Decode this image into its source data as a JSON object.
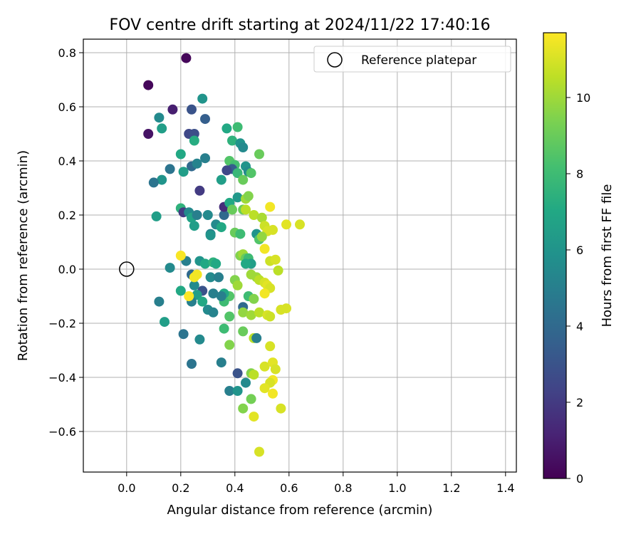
{
  "chart_data": {
    "type": "scatter",
    "title": "FOV centre drift starting at 2024/11/22 17:40:16",
    "xlabel": "Angular distance from reference (arcmin)",
    "ylabel": "Rotation from reference (arcmin)",
    "xlim": [
      -0.16,
      1.44
    ],
    "ylim": [
      -0.75,
      0.85
    ],
    "xticks": [
      0.0,
      0.2,
      0.4,
      0.6,
      0.8,
      1.0,
      1.2,
      1.4
    ],
    "xtick_labels": [
      "0.0",
      "0.2",
      "0.4",
      "0.6",
      "0.8",
      "1.0",
      "1.2",
      "1.4"
    ],
    "yticks": [
      -0.6,
      -0.4,
      -0.2,
      0.0,
      0.2,
      0.4,
      0.6,
      0.8
    ],
    "ytick_labels": [
      "−0.6",
      "−0.4",
      "−0.2",
      "0.0",
      "0.2",
      "0.4",
      "0.6",
      "0.8"
    ],
    "grid": true,
    "legend": {
      "placement": "top-right",
      "entries": [
        "Reference platepar"
      ]
    },
    "reference_point": {
      "x": 0.0,
      "y": 0.0,
      "label": "Reference platepar"
    },
    "colorbar": {
      "label": "Hours from first FF file",
      "range": [
        0,
        11.7
      ],
      "ticks": [
        0,
        2,
        4,
        6,
        8,
        10
      ],
      "tick_labels": [
        "0",
        "2",
        "4",
        "6",
        "8",
        "10"
      ],
      "colormap": "viridis"
    },
    "points": [
      {
        "x": 0.22,
        "y": 0.78,
        "h": 0.2
      },
      {
        "x": 0.08,
        "y": 0.68,
        "h": 0.2
      },
      {
        "x": 0.08,
        "y": 0.5,
        "h": 0.6
      },
      {
        "x": 0.17,
        "y": 0.59,
        "h": 1.0
      },
      {
        "x": 0.12,
        "y": 0.56,
        "h": 5.5
      },
      {
        "x": 0.13,
        "y": 0.52,
        "h": 6.5
      },
      {
        "x": 0.24,
        "y": 0.59,
        "h": 3.0
      },
      {
        "x": 0.28,
        "y": 0.63,
        "h": 6.0
      },
      {
        "x": 0.29,
        "y": 0.555,
        "h": 3.5
      },
      {
        "x": 0.23,
        "y": 0.5,
        "h": 2.5
      },
      {
        "x": 0.25,
        "y": 0.5,
        "h": 2.8
      },
      {
        "x": 0.25,
        "y": 0.475,
        "h": 7.2
      },
      {
        "x": 0.2,
        "y": 0.425,
        "h": 7.0
      },
      {
        "x": 0.29,
        "y": 0.41,
        "h": 5.0
      },
      {
        "x": 0.24,
        "y": 0.38,
        "h": 4.0
      },
      {
        "x": 0.26,
        "y": 0.39,
        "h": 5.2
      },
      {
        "x": 0.16,
        "y": 0.37,
        "h": 4.5
      },
      {
        "x": 0.21,
        "y": 0.36,
        "h": 6.5
      },
      {
        "x": 0.13,
        "y": 0.33,
        "h": 6.0
      },
      {
        "x": 0.1,
        "y": 0.32,
        "h": 4.5
      },
      {
        "x": 0.27,
        "y": 0.29,
        "h": 2.0
      },
      {
        "x": 0.2,
        "y": 0.225,
        "h": 7.5
      },
      {
        "x": 0.21,
        "y": 0.21,
        "h": 2.0
      },
      {
        "x": 0.23,
        "y": 0.21,
        "h": 5.5
      },
      {
        "x": 0.11,
        "y": 0.195,
        "h": 6.5
      },
      {
        "x": 0.24,
        "y": 0.19,
        "h": 6.8
      },
      {
        "x": 0.26,
        "y": 0.2,
        "h": 5.0
      },
      {
        "x": 0.3,
        "y": 0.2,
        "h": 5.5
      },
      {
        "x": 0.25,
        "y": 0.16,
        "h": 6.5
      },
      {
        "x": 0.31,
        "y": 0.13,
        "h": 5.2
      },
      {
        "x": 0.31,
        "y": 0.125,
        "h": 6.0
      },
      {
        "x": 0.33,
        "y": 0.165,
        "h": 5.5
      },
      {
        "x": 0.35,
        "y": 0.155,
        "h": 7.0
      },
      {
        "x": 0.36,
        "y": 0.2,
        "h": 4.0
      },
      {
        "x": 0.36,
        "y": 0.23,
        "h": 1.5
      },
      {
        "x": 0.37,
        "y": 0.52,
        "h": 7.0
      },
      {
        "x": 0.39,
        "y": 0.475,
        "h": 7.5
      },
      {
        "x": 0.41,
        "y": 0.525,
        "h": 8.0
      },
      {
        "x": 0.42,
        "y": 0.465,
        "h": 6.0
      },
      {
        "x": 0.43,
        "y": 0.45,
        "h": 5.5
      },
      {
        "x": 0.38,
        "y": 0.4,
        "h": 8.5
      },
      {
        "x": 0.4,
        "y": 0.385,
        "h": 8.2
      },
      {
        "x": 0.39,
        "y": 0.37,
        "h": 3.5
      },
      {
        "x": 0.37,
        "y": 0.365,
        "h": 2.5
      },
      {
        "x": 0.35,
        "y": 0.33,
        "h": 6.5
      },
      {
        "x": 0.41,
        "y": 0.355,
        "h": 7.8
      },
      {
        "x": 0.44,
        "y": 0.38,
        "h": 6.0
      },
      {
        "x": 0.45,
        "y": 0.36,
        "h": 5.5
      },
      {
        "x": 0.46,
        "y": 0.355,
        "h": 8.5
      },
      {
        "x": 0.43,
        "y": 0.33,
        "h": 9.0
      },
      {
        "x": 0.49,
        "y": 0.425,
        "h": 9.0
      },
      {
        "x": 0.38,
        "y": 0.245,
        "h": 7.0
      },
      {
        "x": 0.41,
        "y": 0.265,
        "h": 6.2
      },
      {
        "x": 0.44,
        "y": 0.26,
        "h": 10.0
      },
      {
        "x": 0.45,
        "y": 0.27,
        "h": 9.5
      },
      {
        "x": 0.43,
        "y": 0.22,
        "h": 9.0
      },
      {
        "x": 0.44,
        "y": 0.22,
        "h": 10.5
      },
      {
        "x": 0.39,
        "y": 0.22,
        "h": 9.0
      },
      {
        "x": 0.47,
        "y": 0.2,
        "h": 10.5
      },
      {
        "x": 0.5,
        "y": 0.19,
        "h": 10.2
      },
      {
        "x": 0.53,
        "y": 0.23,
        "h": 11.5
      },
      {
        "x": 0.51,
        "y": 0.16,
        "h": 10.8
      },
      {
        "x": 0.52,
        "y": 0.14,
        "h": 11.0
      },
      {
        "x": 0.54,
        "y": 0.145,
        "h": 11.0
      },
      {
        "x": 0.59,
        "y": 0.165,
        "h": 11.2
      },
      {
        "x": 0.64,
        "y": 0.165,
        "h": 11.0
      },
      {
        "x": 0.4,
        "y": 0.135,
        "h": 9.0
      },
      {
        "x": 0.42,
        "y": 0.13,
        "h": 8.0
      },
      {
        "x": 0.48,
        "y": 0.13,
        "h": 6.0
      },
      {
        "x": 0.49,
        "y": 0.11,
        "h": 8.5
      },
      {
        "x": 0.5,
        "y": 0.12,
        "h": 9.8
      },
      {
        "x": 0.51,
        "y": 0.075,
        "h": 11.5
      },
      {
        "x": 0.42,
        "y": 0.05,
        "h": 9.5
      },
      {
        "x": 0.43,
        "y": 0.055,
        "h": 10.0
      },
      {
        "x": 0.44,
        "y": 0.04,
        "h": 9.0
      },
      {
        "x": 0.45,
        "y": 0.04,
        "h": 8.0
      },
      {
        "x": 0.46,
        "y": 0.02,
        "h": 6.5
      },
      {
        "x": 0.44,
        "y": 0.02,
        "h": 7.0
      },
      {
        "x": 0.46,
        "y": -0.02,
        "h": 10.0
      },
      {
        "x": 0.48,
        "y": -0.03,
        "h": 10.0
      },
      {
        "x": 0.49,
        "y": -0.04,
        "h": 10.5
      },
      {
        "x": 0.51,
        "y": -0.05,
        "h": 11.0
      },
      {
        "x": 0.52,
        "y": -0.06,
        "h": 11.2
      },
      {
        "x": 0.53,
        "y": -0.07,
        "h": 11.0
      },
      {
        "x": 0.51,
        "y": -0.09,
        "h": 11.5
      },
      {
        "x": 0.53,
        "y": 0.03,
        "h": 10.8
      },
      {
        "x": 0.55,
        "y": 0.035,
        "h": 11.0
      },
      {
        "x": 0.56,
        "y": -0.005,
        "h": 10.5
      },
      {
        "x": 0.45,
        "y": -0.1,
        "h": 8.0
      },
      {
        "x": 0.47,
        "y": -0.11,
        "h": 9.5
      },
      {
        "x": 0.43,
        "y": -0.14,
        "h": 4.0
      },
      {
        "x": 0.43,
        "y": -0.16,
        "h": 9.8
      },
      {
        "x": 0.46,
        "y": -0.17,
        "h": 10.0
      },
      {
        "x": 0.49,
        "y": -0.16,
        "h": 10.5
      },
      {
        "x": 0.52,
        "y": -0.17,
        "h": 11.0
      },
      {
        "x": 0.53,
        "y": -0.175,
        "h": 10.8
      },
      {
        "x": 0.57,
        "y": -0.15,
        "h": 11.0
      },
      {
        "x": 0.59,
        "y": -0.145,
        "h": 11.0
      },
      {
        "x": 0.4,
        "y": -0.04,
        "h": 9.5
      },
      {
        "x": 0.41,
        "y": -0.06,
        "h": 10.0
      },
      {
        "x": 0.38,
        "y": -0.1,
        "h": 8.5
      },
      {
        "x": 0.36,
        "y": -0.09,
        "h": 7.0
      },
      {
        "x": 0.36,
        "y": -0.12,
        "h": 8.0
      },
      {
        "x": 0.35,
        "y": -0.1,
        "h": 5.0
      },
      {
        "x": 0.32,
        "y": -0.09,
        "h": 5.0
      },
      {
        "x": 0.31,
        "y": -0.03,
        "h": 5.5
      },
      {
        "x": 0.34,
        "y": -0.03,
        "h": 5.0
      },
      {
        "x": 0.28,
        "y": -0.08,
        "h": 3.0
      },
      {
        "x": 0.25,
        "y": -0.06,
        "h": 5.5
      },
      {
        "x": 0.26,
        "y": -0.095,
        "h": 6.5
      },
      {
        "x": 0.24,
        "y": -0.12,
        "h": 5.0
      },
      {
        "x": 0.28,
        "y": -0.12,
        "h": 7.0
      },
      {
        "x": 0.3,
        "y": -0.15,
        "h": 5.5
      },
      {
        "x": 0.32,
        "y": -0.16,
        "h": 5.2
      },
      {
        "x": 0.24,
        "y": -0.02,
        "h": 4.0
      },
      {
        "x": 0.25,
        "y": -0.03,
        "h": 11.5
      },
      {
        "x": 0.26,
        "y": -0.02,
        "h": 11.5
      },
      {
        "x": 0.23,
        "y": -0.1,
        "h": 11.8
      },
      {
        "x": 0.22,
        "y": 0.03,
        "h": 5.0
      },
      {
        "x": 0.2,
        "y": 0.05,
        "h": 11.6
      },
      {
        "x": 0.2,
        "y": -0.08,
        "h": 7.0
      },
      {
        "x": 0.16,
        "y": 0.005,
        "h": 5.5
      },
      {
        "x": 0.12,
        "y": -0.12,
        "h": 5.0
      },
      {
        "x": 0.14,
        "y": -0.195,
        "h": 6.5
      },
      {
        "x": 0.21,
        "y": -0.24,
        "h": 4.5
      },
      {
        "x": 0.27,
        "y": -0.26,
        "h": 5.5
      },
      {
        "x": 0.24,
        "y": -0.35,
        "h": 4.5
      },
      {
        "x": 0.27,
        "y": 0.03,
        "h": 6.0
      },
      {
        "x": 0.29,
        "y": 0.02,
        "h": 7.0
      },
      {
        "x": 0.32,
        "y": 0.025,
        "h": 7.5
      },
      {
        "x": 0.33,
        "y": 0.02,
        "h": 7.0
      },
      {
        "x": 0.36,
        "y": -0.22,
        "h": 8.0
      },
      {
        "x": 0.38,
        "y": -0.175,
        "h": 8.5
      },
      {
        "x": 0.38,
        "y": -0.28,
        "h": 9.5
      },
      {
        "x": 0.35,
        "y": -0.345,
        "h": 5.0
      },
      {
        "x": 0.41,
        "y": -0.385,
        "h": 3.0
      },
      {
        "x": 0.38,
        "y": -0.45,
        "h": 5.0
      },
      {
        "x": 0.41,
        "y": -0.45,
        "h": 6.0
      },
      {
        "x": 0.44,
        "y": -0.42,
        "h": 5.5
      },
      {
        "x": 0.43,
        "y": -0.23,
        "h": 9.0
      },
      {
        "x": 0.47,
        "y": -0.255,
        "h": 10.5
      },
      {
        "x": 0.48,
        "y": -0.255,
        "h": 5.0
      },
      {
        "x": 0.46,
        "y": -0.385,
        "h": 9.5
      },
      {
        "x": 0.47,
        "y": -0.39,
        "h": 10.5
      },
      {
        "x": 0.46,
        "y": -0.48,
        "h": 9.2
      },
      {
        "x": 0.43,
        "y": -0.515,
        "h": 9.5
      },
      {
        "x": 0.47,
        "y": -0.545,
        "h": 11.2
      },
      {
        "x": 0.49,
        "y": -0.675,
        "h": 11.0
      },
      {
        "x": 0.53,
        "y": -0.285,
        "h": 11.0
      },
      {
        "x": 0.51,
        "y": -0.36,
        "h": 11.0
      },
      {
        "x": 0.54,
        "y": -0.345,
        "h": 11.2
      },
      {
        "x": 0.55,
        "y": -0.37,
        "h": 11.0
      },
      {
        "x": 0.54,
        "y": -0.41,
        "h": 11.5
      },
      {
        "x": 0.53,
        "y": -0.42,
        "h": 11.0
      },
      {
        "x": 0.51,
        "y": -0.44,
        "h": 11.2
      },
      {
        "x": 0.54,
        "y": -0.46,
        "h": 11.5
      },
      {
        "x": 0.57,
        "y": -0.515,
        "h": 11.0
      }
    ]
  }
}
